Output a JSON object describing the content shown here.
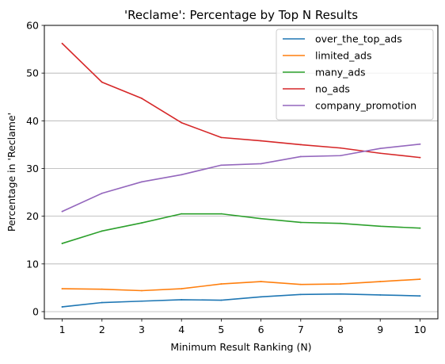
{
  "chart_data": {
    "type": "line",
    "title": "'Reclame': Percentage by Top N Results",
    "xlabel": "Minimum Result Ranking (N)",
    "ylabel": "Percentage in 'Reclame'",
    "x": [
      1,
      2,
      3,
      4,
      5,
      6,
      7,
      8,
      9,
      10
    ],
    "x_ticks": [
      "1",
      "2",
      "3",
      "4",
      "5",
      "6",
      "7",
      "8",
      "9",
      "10"
    ],
    "y_ticks": [
      "0",
      "10",
      "20",
      "30",
      "40",
      "50",
      "60"
    ],
    "xlim": [
      0.55,
      10.45
    ],
    "ylim": [
      -1.5,
      60
    ],
    "grid": "y-axis horizontal lines",
    "legend_position": "top-right",
    "series": [
      {
        "name": "over_the_top_ads",
        "color": "#1f77b4",
        "values": [
          1.0,
          1.9,
          2.2,
          2.5,
          2.4,
          3.1,
          3.6,
          3.7,
          3.5,
          3.3
        ]
      },
      {
        "name": "limited_ads",
        "color": "#ff7f0e",
        "values": [
          4.8,
          4.7,
          4.4,
          4.8,
          5.8,
          6.3,
          5.7,
          5.8,
          6.3,
          6.8
        ]
      },
      {
        "name": "many_ads",
        "color": "#2ca02c",
        "values": [
          14.3,
          16.9,
          18.6,
          20.5,
          20.5,
          19.5,
          18.7,
          18.5,
          17.9,
          17.5
        ]
      },
      {
        "name": "no_ads",
        "color": "#d62728",
        "values": [
          56.2,
          48.1,
          44.7,
          39.6,
          36.5,
          35.8,
          35.0,
          34.3,
          33.2,
          32.3
        ]
      },
      {
        "name": "company_promotion",
        "color": "#9467bd",
        "values": [
          21.0,
          24.8,
          27.2,
          28.7,
          30.7,
          31.0,
          32.5,
          32.7,
          34.2,
          35.1
        ]
      }
    ]
  }
}
